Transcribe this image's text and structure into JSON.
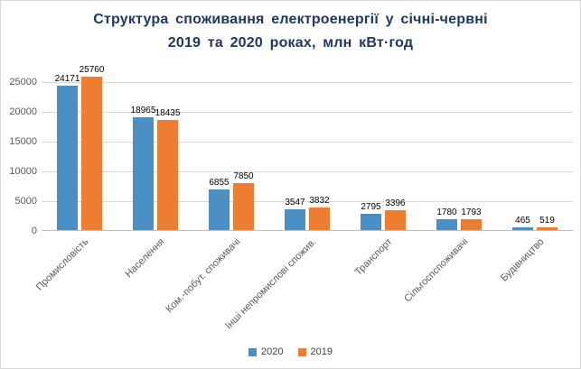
{
  "chart_data": {
    "type": "bar",
    "title_line1": "Структура споживання електроенергії у січні-червні",
    "title_line2": "2019 та 2020 роках, млн кВт·год",
    "title_color": "#1F3864",
    "categories": [
      "Промисловість",
      "Населення",
      "Ком.-побут. споживачі",
      "Інші непромислові спожив.",
      "Транспорт",
      "Сільгоспспоживачі",
      "Будівництво"
    ],
    "series": [
      {
        "name": "2020",
        "color": "#4A90C4",
        "values": [
          24171,
          18965,
          6855,
          3547,
          2795,
          1780,
          465
        ]
      },
      {
        "name": "2019",
        "color": "#ED7D31",
        "values": [
          25760,
          18435,
          7850,
          3832,
          3396,
          1793,
          519
        ]
      }
    ],
    "ylim": [
      0,
      26500
    ],
    "yticks": [
      0,
      5000,
      10000,
      15000,
      20000,
      25000
    ],
    "grid": true,
    "legend_position": "bottom"
  }
}
